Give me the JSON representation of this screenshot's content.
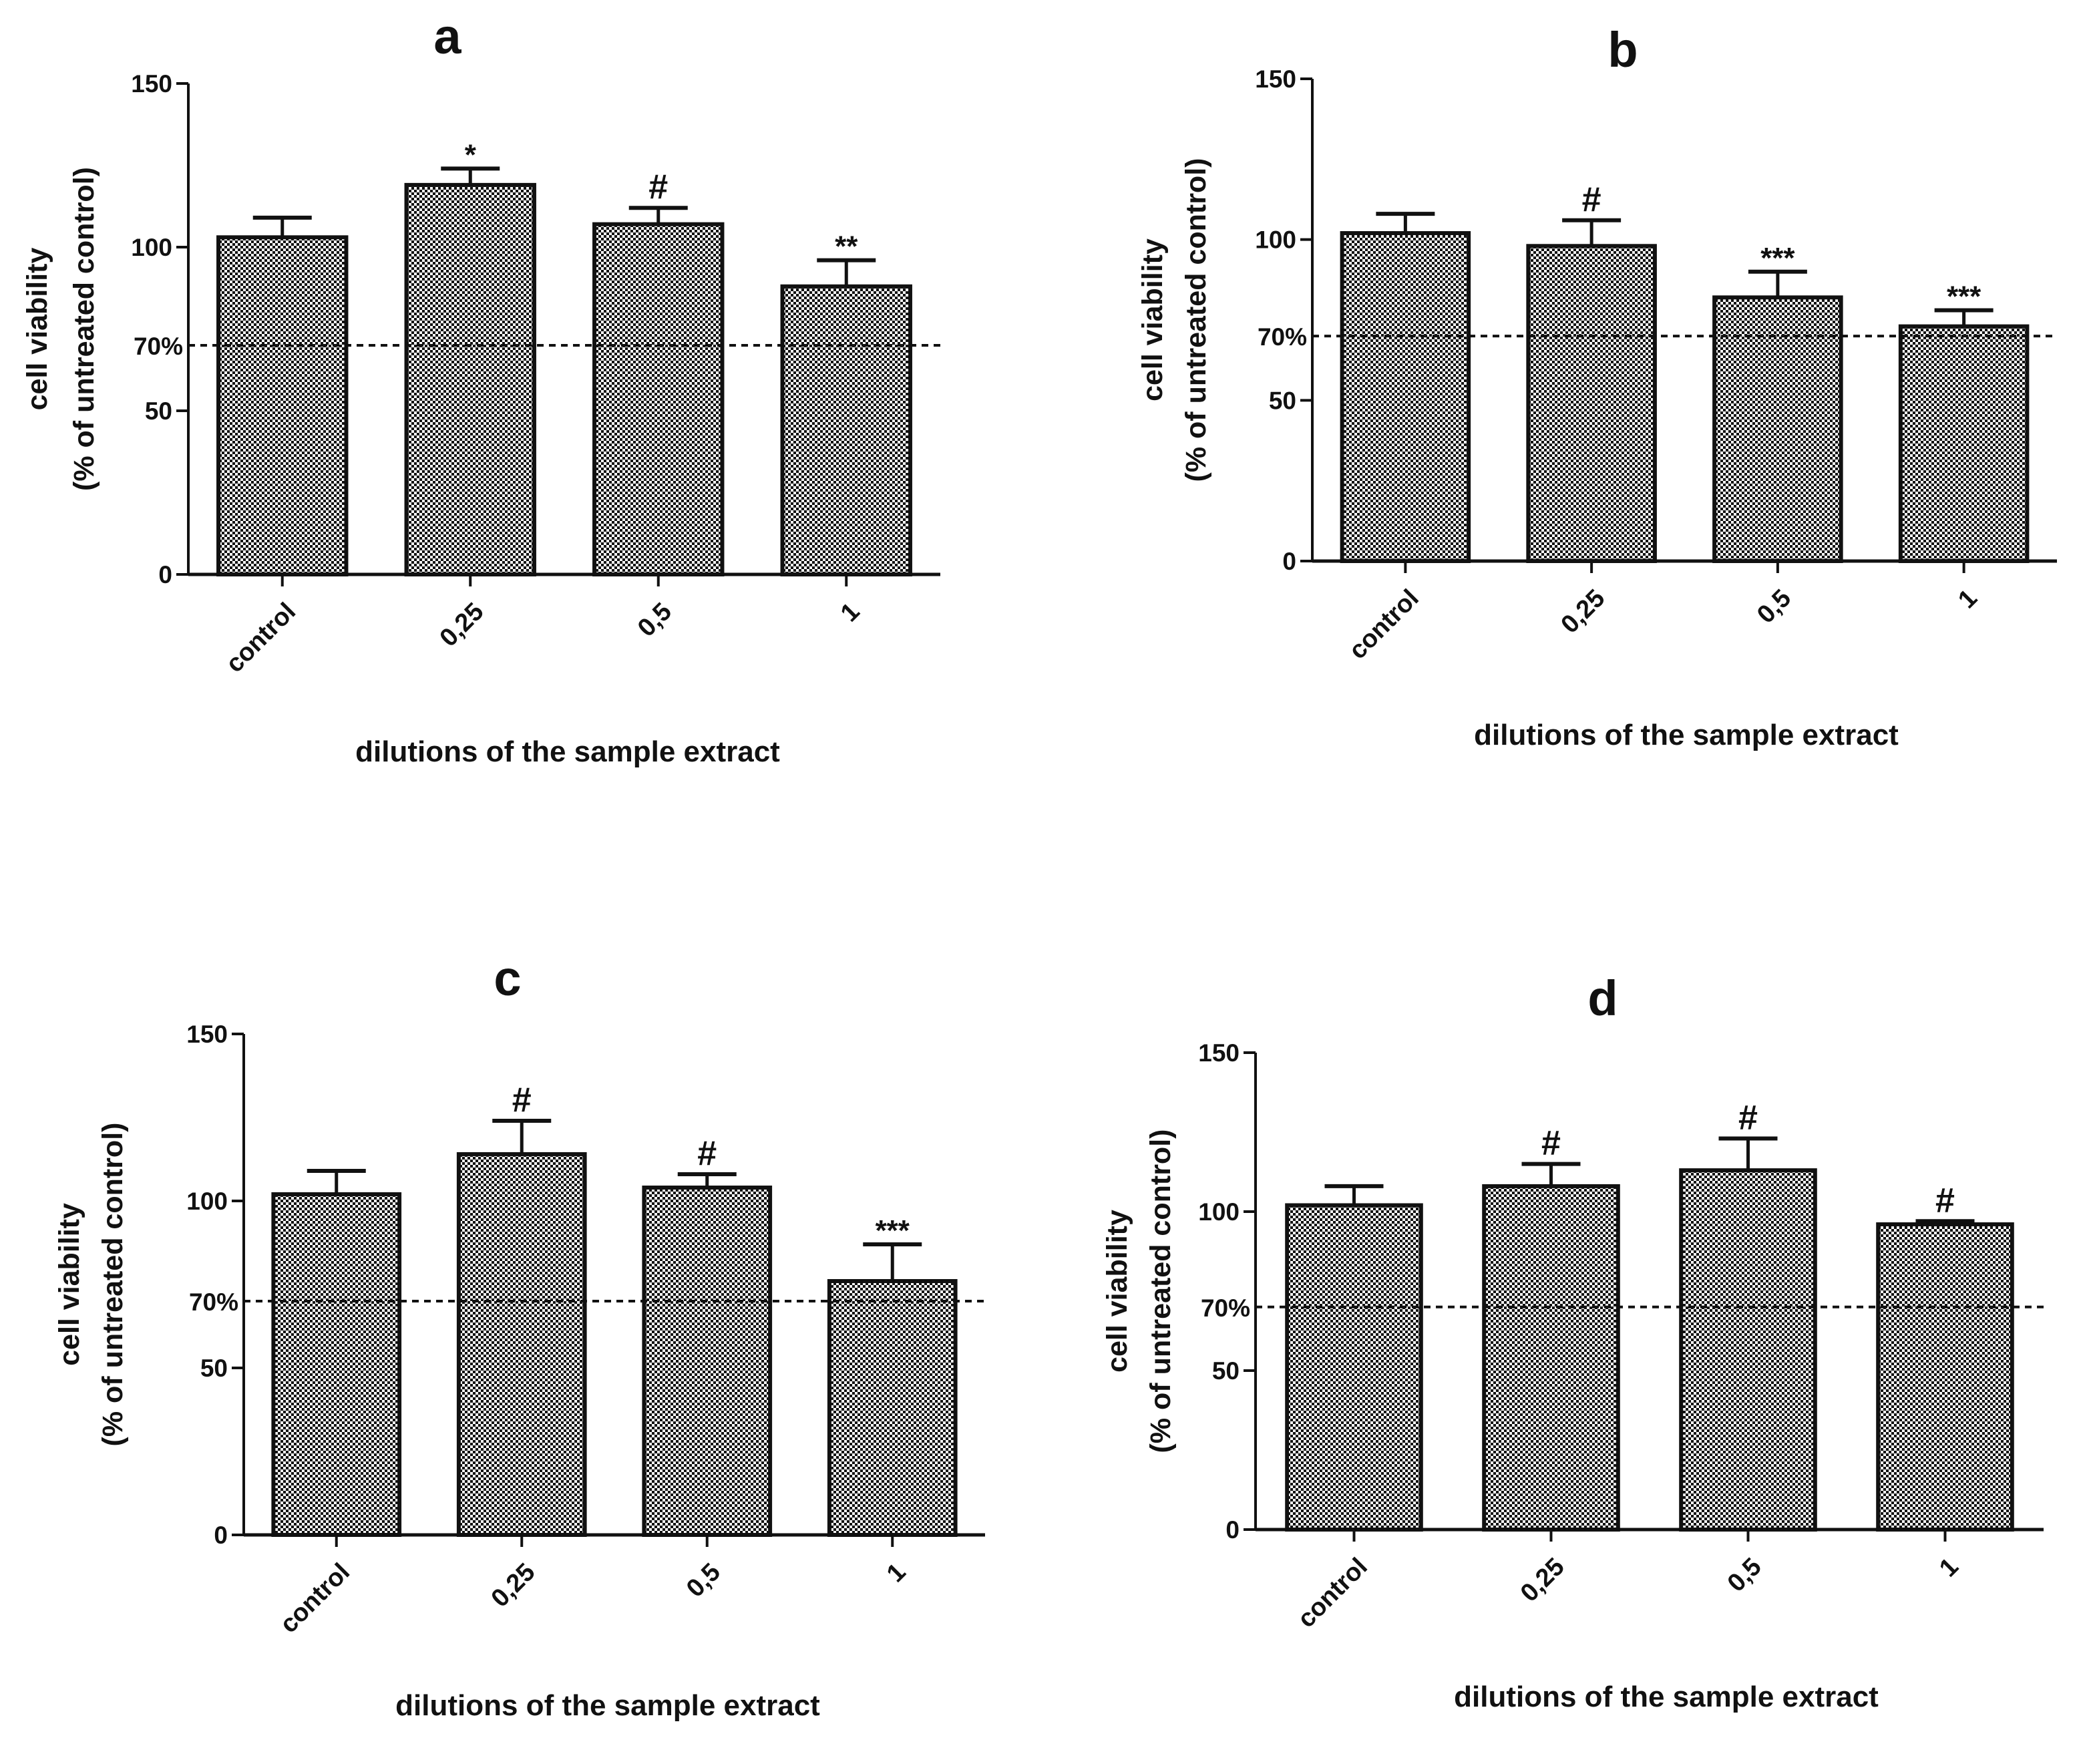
{
  "figure": {
    "colors": {
      "bar_fill": "#8c8c8c",
      "stroke": "#111111",
      "background": "#ffffff"
    }
  },
  "chart_data": [
    {
      "type": "bar",
      "panel": "a",
      "categories": [
        "control",
        "0,25",
        "0,5",
        "1"
      ],
      "values": [
        103,
        119,
        107,
        88
      ],
      "errors": [
        6,
        5,
        5,
        8
      ],
      "annotations": [
        "",
        "*",
        "#",
        "**"
      ],
      "reference_line": {
        "value": 70,
        "label": "70%"
      },
      "yticks": [
        0,
        50,
        100,
        150
      ],
      "ylim": [
        0,
        150
      ],
      "ylabel_lines": [
        "cell viability",
        "(% of untreated control)"
      ],
      "xlabel": "dilutions of the sample extract"
    },
    {
      "type": "bar",
      "panel": "b",
      "categories": [
        "control",
        "0,25",
        "0,5",
        "1"
      ],
      "values": [
        102,
        98,
        82,
        73
      ],
      "errors": [
        6,
        8,
        8,
        5
      ],
      "annotations": [
        "",
        "#",
        "***",
        "***"
      ],
      "reference_line": {
        "value": 70,
        "label": "70%"
      },
      "yticks": [
        0,
        50,
        100,
        150
      ],
      "ylim": [
        0,
        150
      ],
      "ylabel_lines": [
        "cell viability",
        "(% of untreated control)"
      ],
      "xlabel": "dilutions of the sample extract"
    },
    {
      "type": "bar",
      "panel": "c",
      "categories": [
        "control",
        "0,25",
        "0,5",
        "1"
      ],
      "values": [
        102,
        114,
        104,
        76
      ],
      "errors": [
        7,
        10,
        4,
        11
      ],
      "annotations": [
        "",
        "#",
        "#",
        "***"
      ],
      "reference_line": {
        "value": 70,
        "label": "70%"
      },
      "yticks": [
        0,
        50,
        100,
        150
      ],
      "ylim": [
        0,
        150
      ],
      "ylabel_lines": [
        "cell viability",
        "(% of untreated control)"
      ],
      "xlabel": "dilutions of the sample extract"
    },
    {
      "type": "bar",
      "panel": "d",
      "categories": [
        "control",
        "0,25",
        "0,5",
        "1"
      ],
      "values": [
        102,
        108,
        113,
        96
      ],
      "errors": [
        6,
        7,
        10,
        1
      ],
      "annotations": [
        "",
        "#",
        "#",
        "#"
      ],
      "reference_line": {
        "value": 70,
        "label": "70%"
      },
      "yticks": [
        0,
        50,
        100,
        150
      ],
      "ylim": [
        0,
        150
      ],
      "ylabel_lines": [
        "cell viability",
        "(% of untreated control)"
      ],
      "xlabel": "dilutions of the sample extract"
    }
  ]
}
